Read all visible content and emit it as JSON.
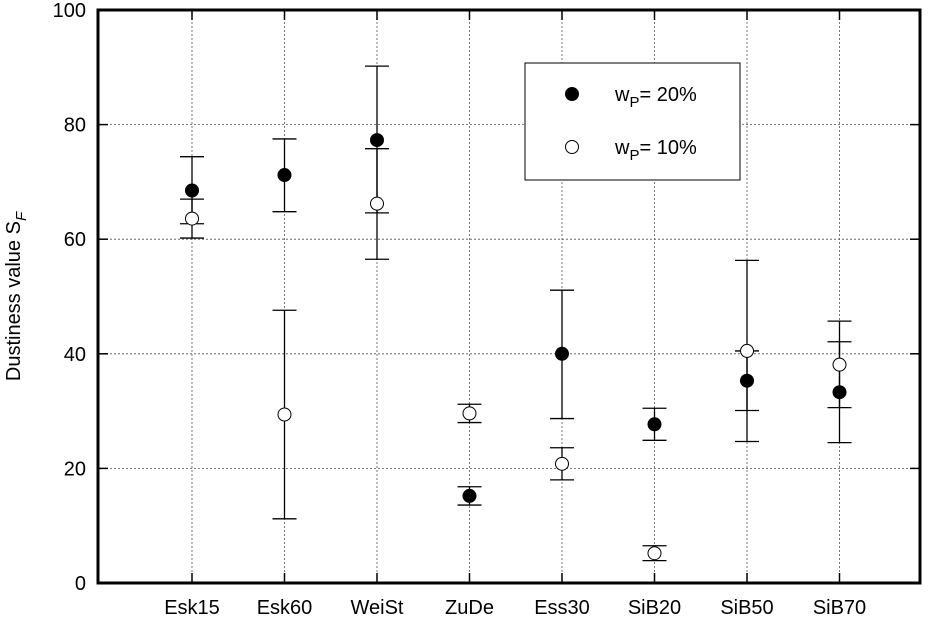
{
  "chart_data": {
    "type": "scatter",
    "title": "",
    "xlabel": "",
    "ylabel": "Dustiness value  S",
    "ylabel_subscript": "F",
    "ylim": [
      0,
      100
    ],
    "yticks": [
      0,
      20,
      40,
      60,
      80,
      100
    ],
    "grid": true,
    "categories": [
      "Esk15",
      "Esk60",
      "WeiSt",
      "ZuDe",
      "Ess30",
      "SiB20",
      "SiB50",
      "SiB70"
    ],
    "legend_placement": "top-right",
    "series": [
      {
        "name": "w_P= 20%",
        "label_main": "w",
        "label_sub": "P",
        "label_rest": "= 20%",
        "marker": "filled-circle",
        "color": "#000000",
        "values": [
          68.5,
          71.2,
          77.3,
          15.2,
          40.0,
          27.7,
          35.3,
          33.3
        ],
        "err_low": [
          62.7,
          64.8,
          64.6,
          13.6,
          28.7,
          24.9,
          30.1,
          24.5
        ],
        "err_high": [
          74.4,
          77.5,
          90.2,
          16.8,
          51.1,
          30.5,
          40.5,
          42.1
        ]
      },
      {
        "name": "w_P= 10%",
        "label_main": "w",
        "label_sub": "P",
        "label_rest": "= 10%",
        "marker": "open-circle",
        "color": "#000000",
        "values": [
          63.6,
          29.4,
          66.2,
          29.6,
          20.8,
          5.2,
          40.5,
          38.1
        ],
        "err_low": [
          60.2,
          11.2,
          56.5,
          28.0,
          18.0,
          3.9,
          24.7,
          30.6
        ],
        "err_high": [
          67.0,
          47.6,
          75.8,
          31.2,
          23.6,
          6.5,
          56.3,
          45.7
        ]
      }
    ]
  }
}
